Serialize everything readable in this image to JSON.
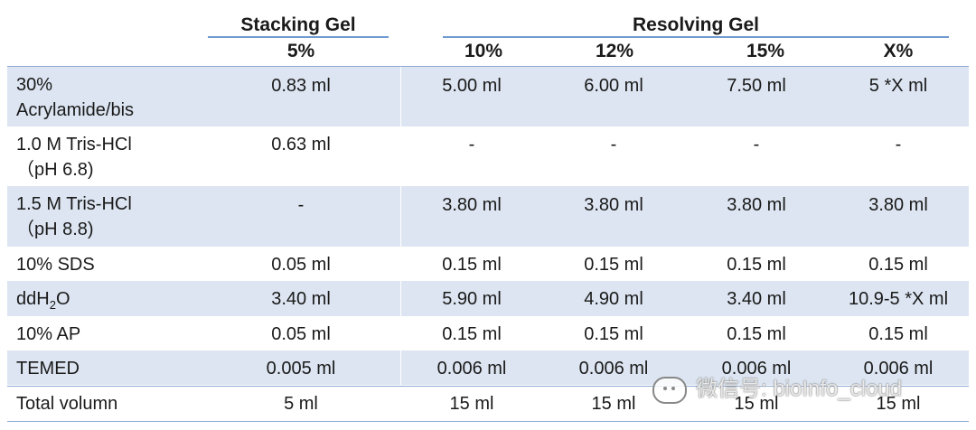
{
  "headers": {
    "stacking": "Stacking Gel",
    "resolving": "Resolving Gel",
    "columns": [
      "5%",
      "10%",
      "12%",
      "15%",
      "X%"
    ]
  },
  "rows": [
    {
      "label": [
        "30%",
        "Acrylamide/bis"
      ],
      "values": [
        "0.83 ml",
        "5.00 ml",
        "6.00 ml",
        "7.50 ml",
        "5  *X ml"
      ]
    },
    {
      "label": [
        "1.0 M Tris-HCl",
        "（pH 6.8)"
      ],
      "values": [
        "0.63 ml",
        "-",
        "-",
        "-",
        "-"
      ]
    },
    {
      "label": [
        "1.5 M Tris-HCl",
        "（pH 8.8)"
      ],
      "values": [
        "-",
        "3.80 ml",
        "3.80 ml",
        "3.80 ml",
        "3.80 ml"
      ]
    },
    {
      "label": [
        "10% SDS"
      ],
      "values": [
        "0.05 ml",
        "0.15 ml",
        "0.15 ml",
        "0.15 ml",
        "0.15 ml"
      ]
    },
    {
      "label": [
        "ddH",
        "2",
        "O"
      ],
      "values": [
        "3.40 ml",
        "5.90 ml",
        "4.90 ml",
        "3.40 ml",
        "10.9-5  *X ml"
      ]
    },
    {
      "label": [
        "10% AP"
      ],
      "values": [
        "0.05 ml",
        "0.15 ml",
        "0.15 ml",
        "0.15 ml",
        "0.15 ml"
      ]
    },
    {
      "label": [
        "TEMED"
      ],
      "values": [
        "0.005 ml",
        "0.006 ml",
        "0.006 ml",
        "0.006 ml",
        "0.006 ml"
      ]
    },
    {
      "label": [
        "Total volumn"
      ],
      "values": [
        "5 ml",
        "15 ml",
        "15 ml",
        "15 ml",
        "15 ml"
      ]
    }
  ],
  "watermark": "微信号: bioInfo_cloud",
  "colors": {
    "shade": "#dce5f1",
    "rule": "#6f9bd1"
  }
}
